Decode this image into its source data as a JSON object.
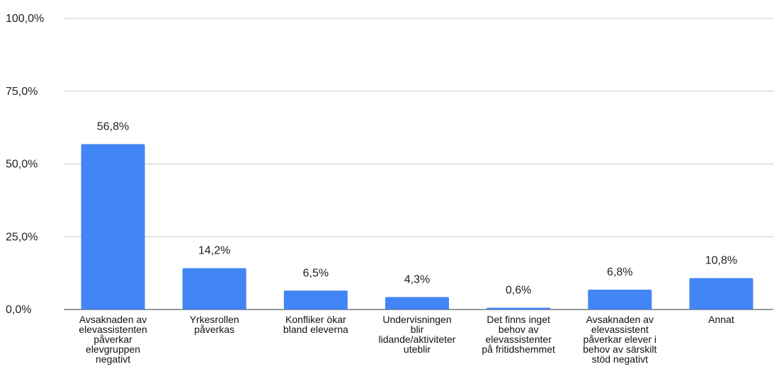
{
  "chart_data": {
    "type": "bar",
    "title": "",
    "xlabel": "",
    "ylabel": "",
    "categories": [
      "Avsaknaden av elevassistenten påverkar elevgruppen negativt",
      "Yrkesrollen påverkas",
      "Konfliker ökar bland eleverna",
      "Undervisningen blir lidande/aktiviteter uteblir",
      "Det finns inget behov av elevassistenter på fritidshemmet",
      "Avsaknaden av elevassistent påverkar elever i behov av särskilt stöd negativt",
      "Annat"
    ],
    "category_label_lines": [
      [
        "Avsaknaden av",
        "elevassistenten",
        "påverkar",
        "elevgruppen",
        "negativt"
      ],
      [
        "Yrkesrollen",
        "påverkas"
      ],
      [
        "Konfliker ökar",
        "bland eleverna"
      ],
      [
        "Undervisningen",
        "blir",
        "lidande/aktiviteter",
        "uteblir"
      ],
      [
        "Det finns inget",
        "behov av",
        "elevassistenter",
        "på fritidshemmet"
      ],
      [
        "Avsaknaden av",
        "elevassistent",
        "påverkar elever i",
        "behov av särskilt",
        "stöd negativt"
      ],
      [
        "Annat"
      ]
    ],
    "values": [
      56.8,
      14.2,
      6.5,
      4.3,
      0.6,
      6.8,
      10.8
    ],
    "value_labels": [
      "56,8%",
      "14,2%",
      "6,5%",
      "4,3%",
      "0,6%",
      "6,8%",
      "10,8%"
    ],
    "ylim": [
      0,
      100
    ],
    "yticks": [
      0,
      25,
      50,
      75,
      100
    ],
    "ytick_labels": [
      "0,0%",
      "25,0%",
      "50,0%",
      "75,0%",
      "100,0%"
    ],
    "grid": true,
    "legend": "none",
    "bar_color": "#4285f4"
  }
}
